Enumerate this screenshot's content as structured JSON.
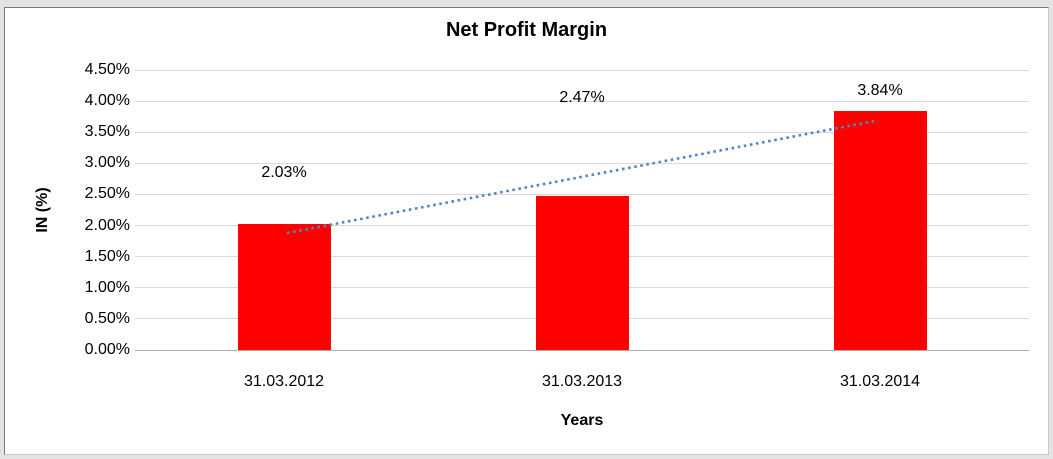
{
  "chart_data": {
    "type": "bar",
    "title": "Net Profit Margin",
    "xlabel": "Years",
    "ylabel": "IN (%)",
    "categories": [
      "31.03.2012",
      "31.03.2013",
      "31.03.2014"
    ],
    "values": [
      2.03,
      2.47,
      3.84
    ],
    "data_labels": [
      "2.03%",
      "2.47%",
      "3.84%"
    ],
    "ylim": [
      0,
      4.5
    ],
    "ytick_step": 0.5,
    "ytick_labels": [
      "0.00%",
      "0.50%",
      "1.00%",
      "1.50%",
      "2.00%",
      "2.50%",
      "3.00%",
      "3.50%",
      "4.00%",
      "4.50%"
    ],
    "grid": true,
    "legend": "none",
    "trendline": {
      "type": "linear",
      "style": "dotted",
      "start_value": 1.88,
      "end_value": 3.69
    },
    "colors": {
      "bar": "#FF0000",
      "trendline": "#4F86C6",
      "gridline": "#D9D9D9",
      "axis_line": "#ADADAD",
      "text": "#000000"
    }
  }
}
